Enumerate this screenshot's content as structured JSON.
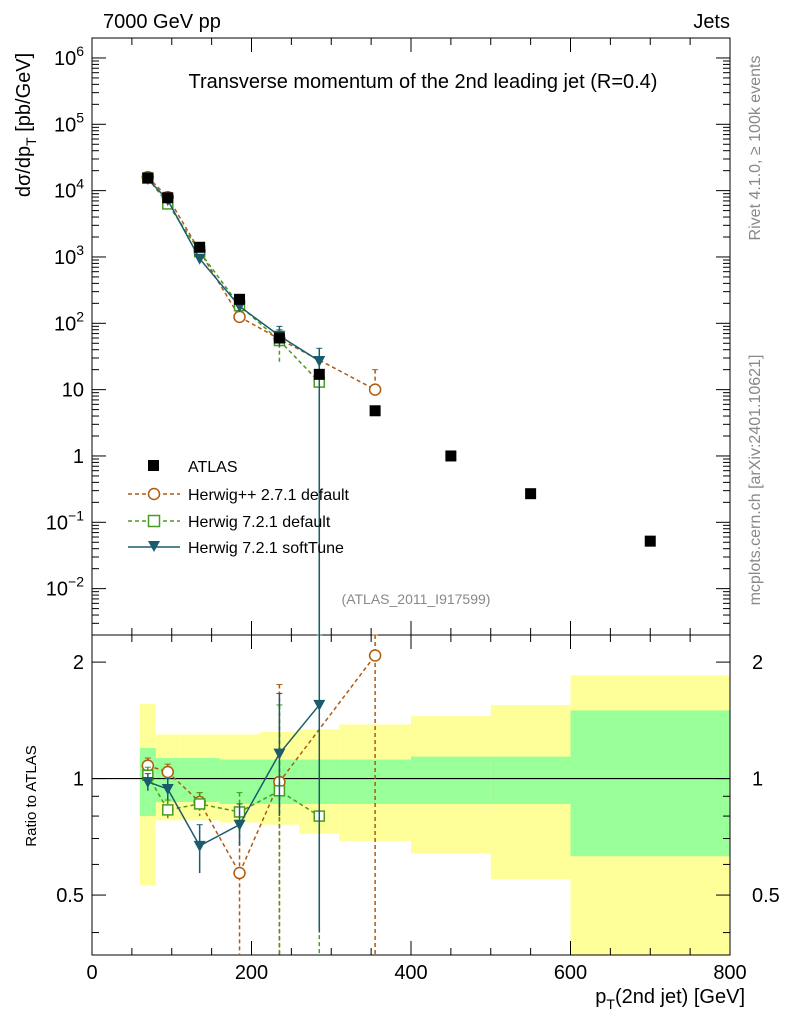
{
  "header": {
    "energy_label": "7000 GeV pp",
    "process_label": "Jets",
    "rivet_label": "Rivet 4.1.0, ≥ 100k events",
    "mcplots_label": "mcplots.cern.ch [arXiv:2401.10621]",
    "analysis_label": "(ATLAS_2011_I917599)"
  },
  "chart_data": [
    {
      "type": "scatter",
      "id": "main",
      "title": "Transverse momentum of the 2nd leading jet (R=0.4)",
      "ylabel": "dσ/dp_T [pb/GeV]",
      "ylabel_main": "dσ/dp",
      "ylabel_sub": "T",
      "ylabel_unit": " [pb/GeV]",
      "yscale": "log",
      "ylim": [
        0.002,
        2000000
      ],
      "xlim": [
        0,
        800
      ],
      "ytick_labels": [
        {
          "value": 1000000,
          "base": "10",
          "exp": "6"
        },
        {
          "value": 100000,
          "base": "10",
          "exp": "5"
        },
        {
          "value": 10000,
          "base": "10",
          "exp": "4"
        },
        {
          "value": 1000,
          "base": "10",
          "exp": "3"
        },
        {
          "value": 100,
          "base": "10",
          "exp": "2"
        },
        {
          "value": 10,
          "base": "10",
          "exp": ""
        },
        {
          "value": 1,
          "base": "1",
          "exp": ""
        },
        {
          "value": 0.1,
          "base": "10",
          "exp": "−1"
        },
        {
          "value": 0.01,
          "base": "10",
          "exp": "−2"
        }
      ],
      "series": [
        {
          "name": "ATLAS",
          "color": "#000000",
          "marker": "square-filled",
          "line": "none",
          "x": [
            70,
            95,
            135,
            185,
            235,
            285,
            355,
            450,
            550,
            700
          ],
          "y": [
            15500,
            7800,
            1400,
            230,
            60,
            17,
            4.8,
            1.0,
            0.27,
            0.052
          ]
        },
        {
          "name": "Herwig++ 2.7.1 default",
          "color": "#b05a10",
          "marker": "circle-open",
          "line": "dashed",
          "x": [
            70,
            95,
            135,
            185,
            235,
            355
          ],
          "y": [
            16000,
            8000,
            1230,
            125,
            58,
            10
          ],
          "yerr_lo": [
            16000,
            8000,
            1230,
            125,
            58,
            10
          ],
          "yerr_hi": [
            17000,
            8800,
            1500,
            180,
            80,
            20
          ]
        },
        {
          "name": "Herwig 7.2.1 default",
          "color": "#4a9a20",
          "marker": "square-open",
          "line": "dashed",
          "x": [
            70,
            95,
            135,
            185,
            235,
            285
          ],
          "y": [
            15500,
            6300,
            1200,
            185,
            55,
            13
          ],
          "yerr_lo": [
            14500,
            5800,
            1050,
            150,
            25,
            0.0015
          ],
          "yerr_hi": [
            16500,
            6900,
            1350,
            220,
            80,
            20
          ]
        },
        {
          "name": "Herwig 7.2.1 softTune",
          "color": "#1a5c6c",
          "marker": "triangle-down-filled",
          "line": "solid",
          "x": [
            70,
            95,
            135,
            185,
            235,
            285
          ],
          "y": [
            15000,
            7200,
            940,
            180,
            65,
            27
          ],
          "yerr_lo": [
            14000,
            6600,
            820,
            150,
            45,
            0.0015
          ],
          "yerr_hi": [
            16000,
            7800,
            1080,
            215,
            90,
            42
          ]
        }
      ]
    },
    {
      "type": "scatter",
      "id": "ratio",
      "ylabel": "Ratio to ATLAS",
      "xlabel": "p_T(2nd jet) [GeV]",
      "xlabel_main": "p",
      "xlabel_sub": "T",
      "xlabel_rest": "(2nd jet) [GeV]",
      "xlim": [
        0,
        800
      ],
      "ylim": [
        0.35,
        2.35
      ],
      "xticks": [
        0,
        200,
        400,
        600,
        800
      ],
      "xtick_labels": [
        "0",
        "200",
        "400",
        "600",
        "800"
      ],
      "yticks": [
        0.5,
        1,
        2
      ],
      "ytick_labels": [
        "0.5",
        "1",
        "2"
      ],
      "bands": {
        "bins": [
          [
            60,
            80
          ],
          [
            80,
            110
          ],
          [
            110,
            160
          ],
          [
            160,
            210
          ],
          [
            210,
            260
          ],
          [
            260,
            310
          ],
          [
            310,
            400
          ],
          [
            400,
            500
          ],
          [
            500,
            600
          ],
          [
            600,
            800
          ]
        ],
        "stat_lo": [
          0.8,
          0.87,
          0.87,
          0.86,
          0.86,
          0.86,
          0.86,
          0.86,
          0.86,
          0.63
        ],
        "stat_hi": [
          1.2,
          1.13,
          1.13,
          1.12,
          1.12,
          1.12,
          1.12,
          1.14,
          1.14,
          1.5
        ],
        "tot_lo": [
          0.53,
          0.78,
          0.78,
          0.77,
          0.76,
          0.72,
          0.69,
          0.64,
          0.55,
          0.35
        ],
        "tot_hi": [
          1.56,
          1.3,
          1.3,
          1.3,
          1.32,
          1.34,
          1.38,
          1.45,
          1.55,
          1.85
        ]
      },
      "series": [
        {
          "name": "Herwig++ 2.7.1 default",
          "color": "#b05a10",
          "marker": "circle-open",
          "line": "dashed",
          "x": [
            70,
            95,
            135,
            185,
            235,
            355
          ],
          "y": [
            1.08,
            1.04,
            0.87,
            0.57,
            0.98,
            2.08
          ],
          "yerr_lo": [
            1.03,
            0.99,
            0.82,
            0.35,
            0.35,
            0.35
          ],
          "yerr_hi": [
            1.13,
            1.09,
            0.92,
            0.78,
            1.75,
            2.35
          ]
        },
        {
          "name": "Herwig 7.2.1 default",
          "color": "#4a9a20",
          "marker": "square-open",
          "line": "dashed",
          "x": [
            70,
            95,
            135,
            185,
            235,
            285
          ],
          "y": [
            1.02,
            0.83,
            0.86,
            0.82,
            0.93,
            0.8
          ],
          "yerr_lo": [
            0.97,
            0.78,
            0.8,
            0.72,
            0.35,
            0.35
          ],
          "yerr_hi": [
            1.07,
            0.88,
            0.92,
            0.92,
            1.55,
            0.8
          ]
        },
        {
          "name": "Herwig 7.2.1 softTune",
          "color": "#1a5c6c",
          "marker": "triangle-down-filled",
          "line": "solid",
          "x": [
            70,
            95,
            135,
            185,
            235,
            285
          ],
          "y": [
            0.98,
            0.94,
            0.67,
            0.76,
            1.16,
            1.55
          ],
          "yerr_lo": [
            0.93,
            0.88,
            0.57,
            0.67,
            0.8,
            0.4
          ],
          "yerr_hi": [
            1.03,
            1.0,
            0.76,
            0.86,
            1.66,
            2.35
          ]
        }
      ]
    }
  ]
}
